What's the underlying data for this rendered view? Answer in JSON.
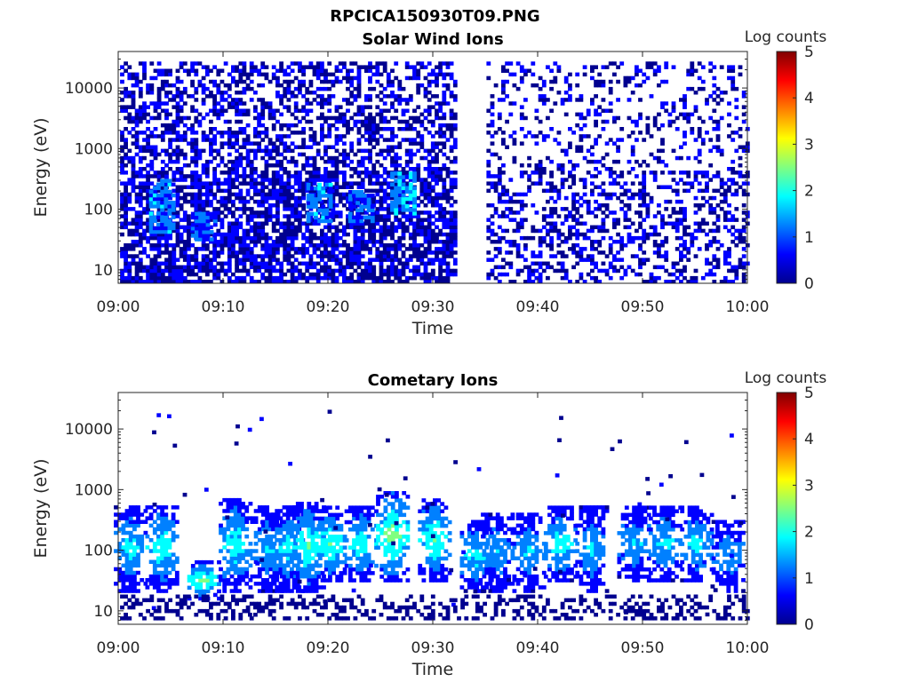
{
  "figure_title": "RPCICA150930T09.PNG",
  "colormap": [
    "#00008f",
    "#0000ff",
    "#0080ff",
    "#00ffff",
    "#80ff80",
    "#ffff00",
    "#ff8000",
    "#ff0000",
    "#800000"
  ],
  "chart_data": [
    {
      "type": "heatmap",
      "title": "Solar Wind Ions",
      "xlabel": "Time",
      "ylabel": "Energy (eV)",
      "yscale": "log",
      "xlim": [
        "09:00",
        "10:00"
      ],
      "ylim": [
        6,
        40000
      ],
      "xticks": [
        "09:00",
        "09:10",
        "09:20",
        "09:30",
        "09:40",
        "09:50",
        "10:00"
      ],
      "yticks": [
        10,
        100,
        1000,
        10000
      ],
      "yticklabels": [
        "10",
        "100",
        "1000",
        "10000"
      ],
      "colorbar": {
        "label": "Log counts",
        "range": [
          0,
          5
        ],
        "ticks": [
          "0",
          "1",
          "2",
          "3",
          "4",
          "5"
        ]
      },
      "data_gap": [
        "09:32",
        "09:35"
      ],
      "features": [
        {
          "time": "09:04",
          "energy_range": [
            40,
            300
          ],
          "level": 1.8
        },
        {
          "time": "09:08",
          "energy_range": [
            30,
            80
          ],
          "level": 1.5
        },
        {
          "time": "09:19",
          "energy_range": [
            60,
            250
          ],
          "level": 1.8
        },
        {
          "time": "09:23",
          "energy_range": [
            60,
            200
          ],
          "level": 1.6
        },
        {
          "time": "09:27",
          "energy_range": [
            80,
            400
          ],
          "level": 2.0
        }
      ],
      "background": {
        "energy_range": [
          6,
          25000
        ],
        "level": 0.5
      }
    },
    {
      "type": "heatmap",
      "title": "Cometary Ions",
      "xlabel": "Time",
      "ylabel": "Energy (eV)",
      "yscale": "log",
      "xlim": [
        "09:00",
        "10:00"
      ],
      "ylim": [
        6,
        40000
      ],
      "xticks": [
        "09:00",
        "09:10",
        "09:20",
        "09:30",
        "09:40",
        "09:50",
        "10:00"
      ],
      "yticks": [
        10,
        100,
        1000,
        10000
      ],
      "yticklabels": [
        "10",
        "100",
        "1000",
        "10000"
      ],
      "colorbar": {
        "label": "Log counts",
        "range": [
          0,
          5
        ],
        "ticks": [
          "0",
          "1",
          "2",
          "3",
          "4",
          "5"
        ]
      },
      "bursts": [
        {
          "time": "09:01",
          "energy_range": [
            20,
            500
          ],
          "level": 1.9
        },
        {
          "time": "09:04",
          "energy_range": [
            20,
            550
          ],
          "level": 2.1
        },
        {
          "time": "09:08",
          "energy_range": [
            15,
            60
          ],
          "level": 2.5
        },
        {
          "time": "09:11",
          "energy_range": [
            20,
            700
          ],
          "level": 2.1
        },
        {
          "time": "09:14",
          "energy_range": [
            20,
            500
          ],
          "level": 1.8
        },
        {
          "time": "09:16",
          "energy_range": [
            20,
            500
          ],
          "level": 1.9
        },
        {
          "time": "09:18",
          "energy_range": [
            20,
            600
          ],
          "level": 2.3
        },
        {
          "time": "09:20",
          "energy_range": [
            30,
            500
          ],
          "level": 2.3
        },
        {
          "time": "09:23",
          "energy_range": [
            30,
            500
          ],
          "level": 2.1
        },
        {
          "time": "09:26",
          "energy_range": [
            30,
            900
          ],
          "level": 2.6
        },
        {
          "time": "09:30",
          "energy_range": [
            30,
            700
          ],
          "level": 2.3
        },
        {
          "time": "09:34",
          "energy_range": [
            20,
            300
          ],
          "level": 1.9
        },
        {
          "time": "09:36",
          "energy_range": [
            20,
            400
          ],
          "level": 1.6
        },
        {
          "time": "09:39",
          "energy_range": [
            20,
            400
          ],
          "level": 1.7
        },
        {
          "time": "09:42",
          "energy_range": [
            30,
            500
          ],
          "level": 2.1
        },
        {
          "time": "09:45",
          "energy_range": [
            20,
            500
          ],
          "level": 1.7
        },
        {
          "time": "09:49",
          "energy_range": [
            30,
            500
          ],
          "level": 1.8
        },
        {
          "time": "09:52",
          "energy_range": [
            30,
            500
          ],
          "level": 1.9
        },
        {
          "time": "09:55",
          "energy_range": [
            30,
            500
          ],
          "level": 1.9
        },
        {
          "time": "09:58",
          "energy_range": [
            20,
            300
          ],
          "level": 1.6
        }
      ]
    }
  ]
}
